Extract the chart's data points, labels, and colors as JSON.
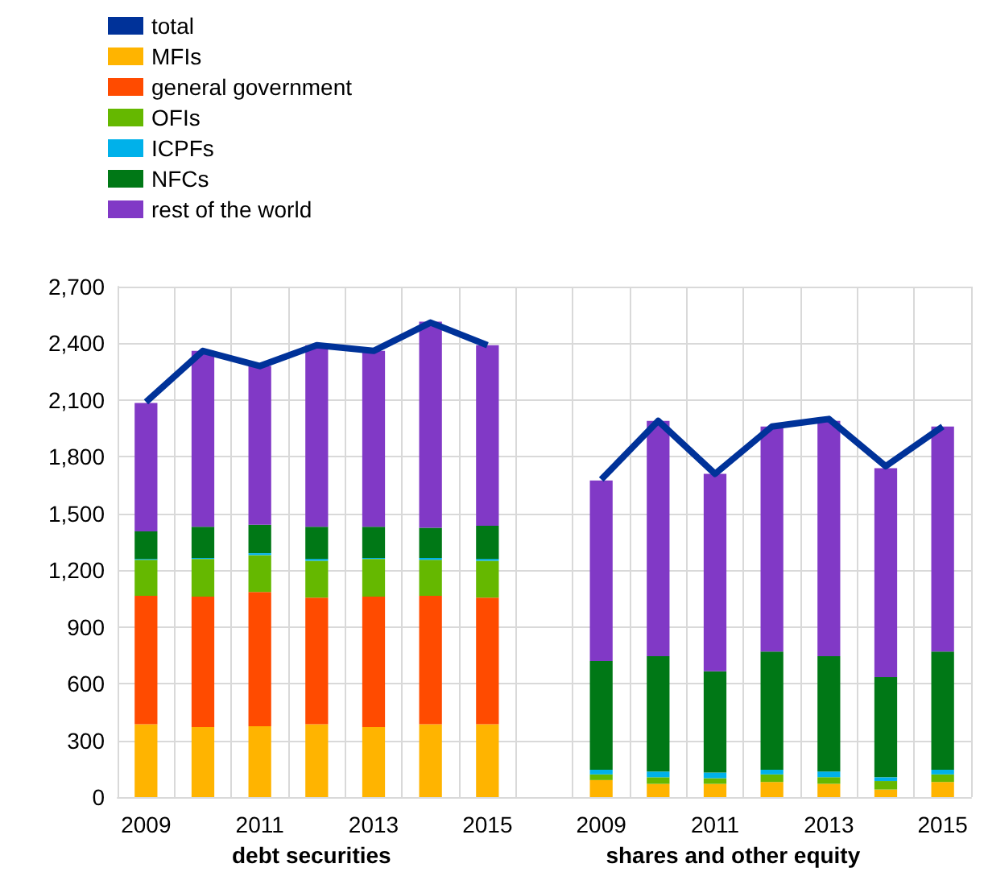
{
  "chart_data": {
    "type": "bar",
    "stacked": true,
    "categories": [
      "2009",
      null,
      "2011",
      null,
      "2013",
      null,
      "2015",
      null,
      "2009",
      null,
      "2011",
      null,
      "2013",
      null,
      "2015"
    ],
    "series": [
      {
        "name": "total",
        "type": "line",
        "color": "#003299",
        "values": [
          2090,
          2360,
          2280,
          2390,
          2360,
          2510,
          2390,
          null,
          1680,
          1990,
          1710,
          1960,
          2000,
          1750,
          1960
        ]
      },
      {
        "name": "MFIs",
        "color": "#ffb400",
        "values": [
          385,
          370,
          375,
          385,
          370,
          385,
          385,
          null,
          90,
          70,
          70,
          80,
          70,
          40,
          80
        ]
      },
      {
        "name": "general government",
        "color": "#ff4b00",
        "values": [
          680,
          690,
          710,
          670,
          690,
          680,
          670,
          null,
          0,
          0,
          0,
          0,
          0,
          0,
          0
        ]
      },
      {
        "name": "OFIs",
        "color": "#65b800",
        "values": [
          190,
          200,
          195,
          195,
          200,
          190,
          195,
          null,
          30,
          35,
          30,
          40,
          35,
          45,
          40
        ]
      },
      {
        "name": "ICPFs",
        "color": "#00b1ea",
        "values": [
          5,
          5,
          10,
          10,
          5,
          10,
          10,
          null,
          25,
          30,
          30,
          25,
          30,
          20,
          25
        ]
      },
      {
        "name": "NFCs",
        "color": "#007816",
        "values": [
          145,
          165,
          150,
          170,
          165,
          160,
          175,
          null,
          575,
          610,
          535,
          625,
          610,
          530,
          625
        ]
      },
      {
        "name": "rest of the world",
        "color": "#8139c6",
        "values": [
          680,
          930,
          840,
          960,
          930,
          1090,
          955,
          null,
          955,
          1245,
          1045,
          1190,
          1245,
          1105,
          1190
        ]
      }
    ],
    "ylim": [
      0,
      2700
    ],
    "yticks": [
      0,
      300,
      600,
      900,
      {
        "value": 1200,
        "label": "1,200"
      },
      {
        "value": 1500,
        "label": "1,500"
      },
      {
        "value": 1800,
        "label": "1,800"
      },
      {
        "value": 2100,
        "label": "2,100"
      },
      {
        "value": 2400,
        "label": "2,400"
      },
      {
        "value": 2700,
        "label": "2,700"
      }
    ],
    "grid": true,
    "legend": "top left",
    "marker": "none",
    "annotations": [
      "debt securities",
      "shares and other equity"
    ]
  }
}
